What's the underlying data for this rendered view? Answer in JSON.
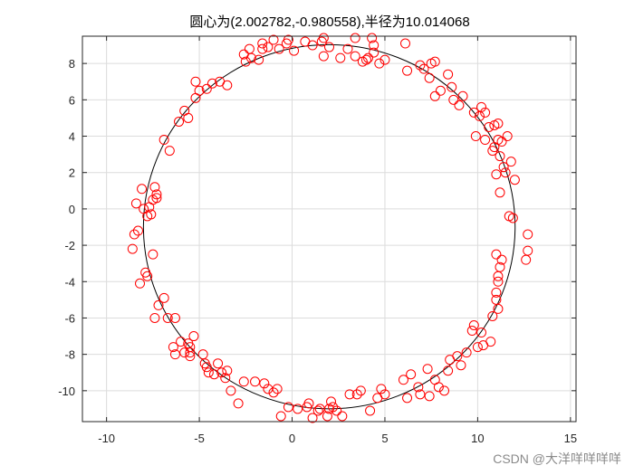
{
  "chart_data": {
    "type": "scatter",
    "title": "圆心为(2.002782,-0.980558),半径为10.014068",
    "xlabel": "",
    "ylabel": "",
    "xlim": [
      -11.3,
      15.3
    ],
    "ylim": [
      -11.7,
      9.5
    ],
    "xticks": [
      -10,
      -5,
      0,
      5,
      10,
      15
    ],
    "yticks": [
      -10,
      -8,
      -6,
      -4,
      -2,
      0,
      2,
      4,
      6,
      8
    ],
    "grid": true,
    "marker_color": "#ff0000",
    "circle_color": "#000000",
    "circle": {
      "cx": 2.002782,
      "cy": -0.980558,
      "r": 10.014068
    },
    "points": [
      [
        -8.6,
        -2.2
      ],
      [
        -8.5,
        -1.4
      ],
      [
        -8.3,
        -1.2
      ],
      [
        -8.4,
        0.3
      ],
      [
        -8.1,
        1.1
      ],
      [
        -8.0,
        0.0
      ],
      [
        -7.8,
        -0.4
      ],
      [
        -7.6,
        -0.3
      ],
      [
        -7.5,
        0.5
      ],
      [
        -7.7,
        0.1
      ],
      [
        -7.4,
        1.2
      ],
      [
        -7.3,
        0.6
      ],
      [
        -7.3,
        0.8
      ],
      [
        -7.5,
        -2.5
      ],
      [
        -7.9,
        -3.5
      ],
      [
        -7.8,
        -3.7
      ],
      [
        -8.2,
        -4.1
      ],
      [
        -7.2,
        -5.3
      ],
      [
        -6.9,
        -4.9
      ],
      [
        -6.7,
        -6.0
      ],
      [
        -7.4,
        -6.0
      ],
      [
        -6.4,
        -7.6
      ],
      [
        -6.3,
        -6.0
      ],
      [
        -6.3,
        -8.0
      ],
      [
        -6.0,
        -7.3
      ],
      [
        -5.8,
        -7.9
      ],
      [
        -5.6,
        -7.4
      ],
      [
        -5.5,
        -8.1
      ],
      [
        -5.5,
        -7.6
      ],
      [
        -5.3,
        -7.0
      ],
      [
        -5.5,
        -7.9
      ],
      [
        -4.8,
        -8.0
      ],
      [
        -4.7,
        -8.5
      ],
      [
        -4.6,
        -8.7
      ],
      [
        -4.5,
        -9.0
      ],
      [
        -4.2,
        -9.1
      ],
      [
        -4.0,
        -8.5
      ],
      [
        -3.8,
        -9.0
      ],
      [
        -3.6,
        -9.3
      ],
      [
        -3.5,
        -8.9
      ],
      [
        -3.3,
        -10.0
      ],
      [
        -2.9,
        -10.7
      ],
      [
        -2.6,
        -9.5
      ],
      [
        -2.0,
        -9.5
      ],
      [
        -1.5,
        -9.6
      ],
      [
        -1.3,
        -9.9
      ],
      [
        -1.0,
        -10.1
      ],
      [
        -0.8,
        -9.9
      ],
      [
        -0.6,
        -11.4
      ],
      [
        -0.2,
        -10.9
      ],
      [
        0.3,
        -11.0
      ],
      [
        0.8,
        -10.9
      ],
      [
        0.9,
        -10.7
      ],
      [
        1.1,
        -11.5
      ],
      [
        1.4,
        -11.1
      ],
      [
        1.5,
        -11.0
      ],
      [
        1.9,
        -11.4
      ],
      [
        2.0,
        -11.0
      ],
      [
        2.1,
        -10.6
      ],
      [
        2.2,
        -10.9
      ],
      [
        2.4,
        -11.1
      ],
      [
        2.7,
        -11.4
      ],
      [
        3.1,
        -10.2
      ],
      [
        3.5,
        -10.2
      ],
      [
        3.7,
        -10.0
      ],
      [
        4.2,
        -11.1
      ],
      [
        4.6,
        -10.4
      ],
      [
        4.8,
        -9.9
      ],
      [
        5.0,
        -10.2
      ],
      [
        6.0,
        -9.4
      ],
      [
        6.2,
        -10.4
      ],
      [
        6.4,
        -9.1
      ],
      [
        6.8,
        -9.8
      ],
      [
        6.9,
        -10.2
      ],
      [
        7.3,
        -8.8
      ],
      [
        7.4,
        -10.3
      ],
      [
        7.7,
        -9.4
      ],
      [
        7.9,
        -9.8
      ],
      [
        8.2,
        -10.0
      ],
      [
        8.4,
        -8.9
      ],
      [
        8.5,
        -8.3
      ],
      [
        8.9,
        -8.1
      ],
      [
        9.1,
        -8.6
      ],
      [
        9.4,
        -7.9
      ],
      [
        9.7,
        -6.7
      ],
      [
        9.8,
        -6.4
      ],
      [
        10.0,
        -7.6
      ],
      [
        10.2,
        -6.8
      ],
      [
        10.3,
        -7.5
      ],
      [
        10.7,
        -7.3
      ],
      [
        10.8,
        -5.9
      ],
      [
        11.0,
        -5.0
      ],
      [
        11.1,
        -5.5
      ],
      [
        11.0,
        -4.6
      ],
      [
        11.1,
        -3.7
      ],
      [
        11.3,
        -2.8
      ],
      [
        11.0,
        -2.5
      ],
      [
        11.2,
        -3.2
      ],
      [
        11.1,
        -4.0
      ],
      [
        11.7,
        -0.4
      ],
      [
        11.9,
        -0.5
      ],
      [
        12.7,
        -1.4
      ],
      [
        12.7,
        -2.3
      ],
      [
        12.6,
        -2.8
      ],
      [
        12.0,
        1.6
      ],
      [
        11.8,
        2.6
      ],
      [
        11.4,
        2.3
      ],
      [
        11.5,
        2.0
      ],
      [
        11.2,
        2.9
      ],
      [
        11.0,
        1.9
      ],
      [
        11.2,
        0.9
      ],
      [
        11.3,
        3.7
      ],
      [
        11.1,
        3.8
      ],
      [
        11.6,
        4.0
      ],
      [
        10.9,
        3.4
      ],
      [
        10.8,
        3.2
      ],
      [
        10.9,
        4.6
      ],
      [
        11.1,
        4.7
      ],
      [
        10.6,
        4.5
      ],
      [
        10.4,
        5.3
      ],
      [
        10.1,
        5.1
      ],
      [
        10.2,
        5.6
      ],
      [
        9.9,
        4.0
      ],
      [
        9.8,
        5.3
      ],
      [
        10.4,
        3.8
      ],
      [
        9.2,
        6.2
      ],
      [
        9.0,
        5.7
      ],
      [
        8.7,
        6.0
      ],
      [
        8.6,
        6.7
      ],
      [
        8.4,
        7.4
      ],
      [
        8.0,
        6.5
      ],
      [
        7.7,
        6.2
      ],
      [
        7.4,
        7.2
      ],
      [
        7.7,
        8.1
      ],
      [
        7.5,
        8.0
      ],
      [
        7.1,
        7.7
      ],
      [
        6.9,
        7.9
      ],
      [
        6.2,
        7.6
      ],
      [
        6.1,
        9.1
      ],
      [
        5.0,
        8.2
      ],
      [
        4.7,
        8.0
      ],
      [
        4.4,
        9.0
      ],
      [
        4.4,
        8.6
      ],
      [
        4.3,
        9.4
      ],
      [
        4.1,
        8.3
      ],
      [
        4.0,
        8.2
      ],
      [
        3.8,
        8.1
      ],
      [
        3.4,
        9.4
      ],
      [
        3.4,
        8.4
      ],
      [
        3.0,
        8.8
      ],
      [
        2.6,
        8.3
      ],
      [
        2.0,
        8.9
      ],
      [
        1.7,
        9.4
      ],
      [
        1.6,
        9.2
      ],
      [
        1.7,
        8.4
      ],
      [
        1.1,
        9.0
      ],
      [
        0.7,
        9.2
      ],
      [
        0.1,
        8.7
      ],
      [
        -0.2,
        9.3
      ],
      [
        -0.3,
        9.1
      ],
      [
        -0.7,
        8.8
      ],
      [
        -1.0,
        9.3
      ],
      [
        -1.3,
        8.9
      ],
      [
        -1.6,
        9.1
      ],
      [
        -1.6,
        8.8
      ],
      [
        -1.8,
        8.2
      ],
      [
        -2.2,
        8.3
      ],
      [
        -2.3,
        8.8
      ],
      [
        -2.6,
        8.5
      ],
      [
        -2.5,
        8.1
      ],
      [
        -3.5,
        6.8
      ],
      [
        -3.9,
        7.0
      ],
      [
        -4.3,
        6.9
      ],
      [
        -4.6,
        6.6
      ],
      [
        -5.0,
        6.5
      ],
      [
        -5.2,
        6.1
      ],
      [
        -5.2,
        7.0
      ],
      [
        -5.6,
        5.0
      ],
      [
        -5.8,
        5.4
      ],
      [
        -6.1,
        4.8
      ],
      [
        -6.6,
        3.2
      ],
      [
        -6.9,
        3.8
      ]
    ]
  },
  "watermark": "CSDN @大洋咩咩咩咩"
}
